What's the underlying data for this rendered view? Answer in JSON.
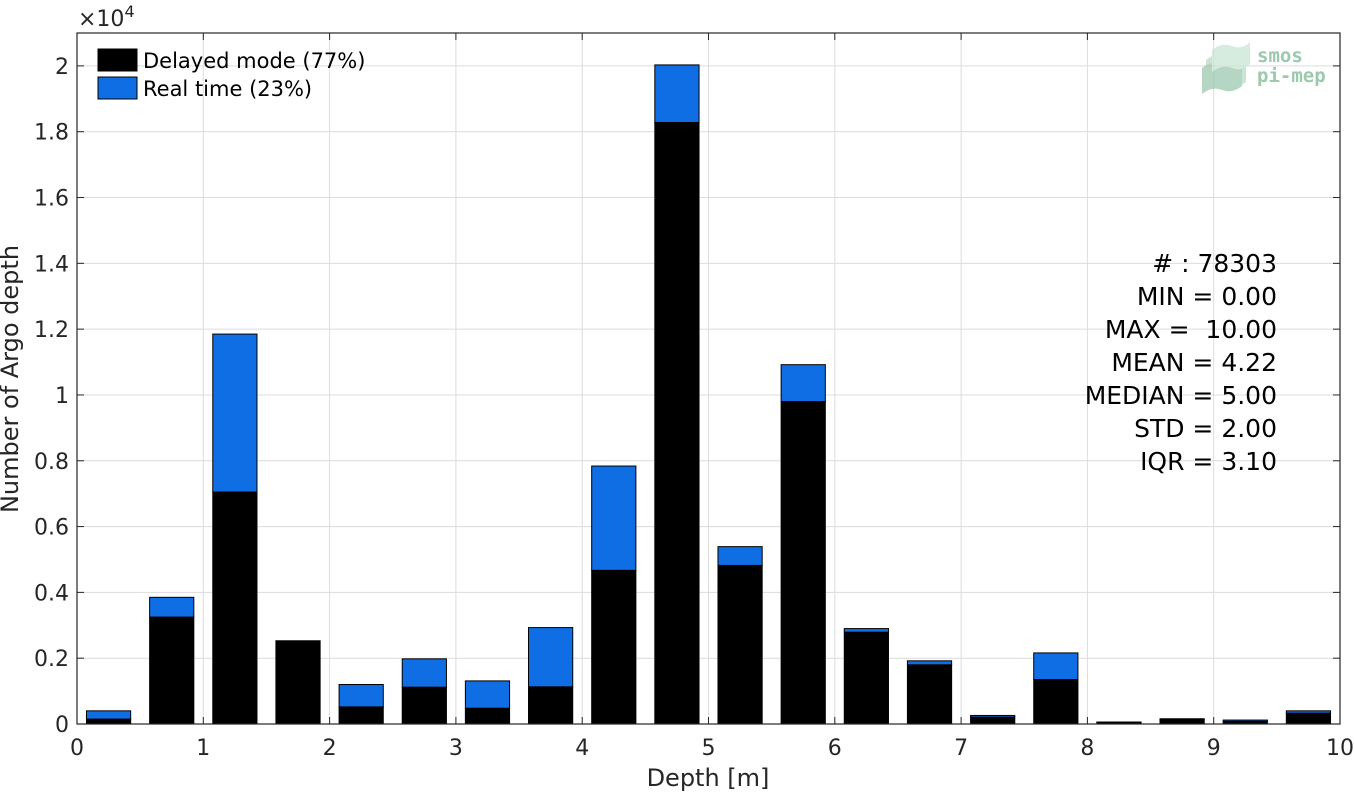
{
  "chart_data": {
    "type": "bar",
    "stacked": true,
    "xlabel": "Depth [m]",
    "ylabel": "Number of Argo depth",
    "y_exponent_label": "×10",
    "y_exponent_power": "4",
    "xlim": [
      0,
      10
    ],
    "ylim": [
      0,
      21000
    ],
    "xticks": [
      "0",
      "1",
      "2",
      "3",
      "4",
      "5",
      "6",
      "7",
      "8",
      "9",
      "10"
    ],
    "yticks": [
      "0",
      "0.2",
      "0.4",
      "0.6",
      "0.8",
      "1",
      "1.2",
      "1.4",
      "1.6",
      "1.8",
      "2"
    ],
    "bin_centers": [
      0.25,
      0.75,
      1.25,
      1.75,
      2.25,
      2.75,
      3.25,
      3.75,
      4.25,
      4.75,
      5.25,
      5.75,
      6.25,
      6.75,
      7.25,
      7.75,
      8.25,
      8.75,
      9.25,
      9.75
    ],
    "bin_width": 0.35,
    "series": [
      {
        "name": "Delayed mode (77%)",
        "color": "#000000",
        "values": [
          150,
          3250,
          7050,
          2530,
          520,
          1120,
          480,
          1130,
          4670,
          18280,
          4820,
          9800,
          2790,
          1800,
          210,
          1350,
          50,
          130,
          80,
          330
        ]
      },
      {
        "name": "Real time (23%)",
        "color": "#0f6ee3",
        "values": [
          250,
          600,
          4800,
          0,
          680,
          860,
          830,
          1800,
          3170,
          1750,
          570,
          1120,
          110,
          120,
          50,
          810,
          10,
          30,
          40,
          70
        ]
      }
    ],
    "grid": true,
    "legend_position": "top-left",
    "stats": [
      "# : 78303",
      "MIN = 0.00",
      "MAX =  10.00",
      "MEAN = 4.22",
      "MEDIAN = 5.00",
      "STD = 2.00",
      "IQR = 3.10"
    ]
  },
  "logo": {
    "line1": "smos",
    "line2": "pi-mep",
    "color": "#9bc9ae"
  }
}
